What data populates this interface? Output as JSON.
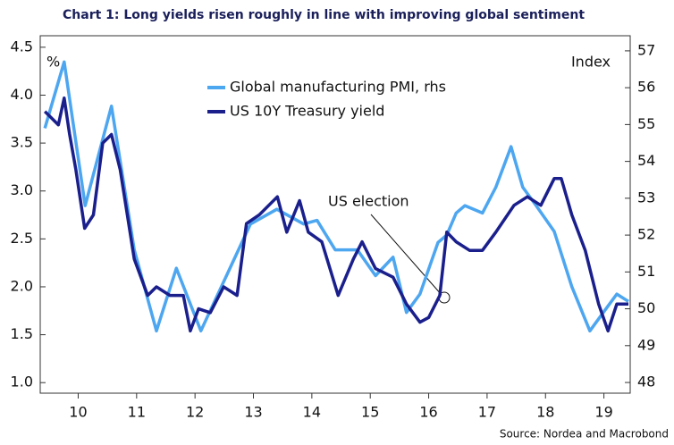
{
  "chart_data": {
    "type": "line",
    "title": "Chart 1: Long yields risen roughly in line with improving global sentiment",
    "y_label": "%",
    "y2_label": "Index",
    "source": "Source: Nordea and Macrobond",
    "annotation": "US election",
    "xlim": [
      9.85,
      19.95
    ],
    "xticks": [
      {
        "value": 10.5,
        "label": "10"
      },
      {
        "value": 11.5,
        "label": "11"
      },
      {
        "value": 12.5,
        "label": "12"
      },
      {
        "value": 13.5,
        "label": "13"
      },
      {
        "value": 14.5,
        "label": "14"
      },
      {
        "value": 15.5,
        "label": "15"
      },
      {
        "value": 16.5,
        "label": "16"
      },
      {
        "value": 17.5,
        "label": "17"
      },
      {
        "value": 18.5,
        "label": "18"
      },
      {
        "value": 19.5,
        "label": "19"
      }
    ],
    "ylim": [
      0.89,
      4.62
    ],
    "yticks": [
      {
        "value": 1,
        "label": "1.0"
      },
      1.5,
      {
        "value": 2,
        "label": "2.0"
      },
      2.5,
      {
        "value": 3,
        "label": "3.0"
      },
      3.5,
      {
        "value": 4,
        "label": "4.0"
      },
      4.5
    ],
    "y2lim": [
      47.71,
      57.41
    ],
    "y2ticks": [
      48,
      49,
      50,
      51,
      52,
      53,
      54,
      55,
      56,
      57
    ],
    "series": [
      {
        "name": "Global manufacturing PMI, rhs",
        "color": "#4da6f0",
        "axis": "y2",
        "x": [
          9.93,
          10.26,
          10.62,
          11.07,
          11.46,
          11.84,
          12.18,
          12.6,
          13.45,
          13.9,
          14.36,
          14.59,
          14.9,
          15.28,
          15.59,
          15.89,
          16.12,
          16.35,
          16.66,
          16.81,
          16.97,
          17.12,
          17.42,
          17.65,
          17.91,
          18.11,
          18.34,
          18.65,
          18.95,
          19.26,
          19.49,
          19.72,
          19.92
        ],
        "values": [
          54.9,
          56.7,
          52.8,
          55.5,
          51.6,
          49.4,
          51.1,
          49.4,
          52.3,
          52.7,
          52.3,
          52.4,
          51.6,
          51.6,
          50.9,
          51.4,
          49.9,
          50.4,
          51.8,
          52.0,
          52.6,
          52.8,
          52.6,
          53.3,
          54.4,
          53.3,
          52.8,
          52.1,
          50.6,
          49.4,
          49.9,
          50.4,
          50.2
        ]
      },
      {
        "name": "US 10Y Treasury yield",
        "color": "#1a1f8c",
        "x": [
          9.93,
          10.16,
          10.26,
          10.35,
          10.46,
          10.61,
          10.76,
          10.92,
          11.07,
          11.22,
          11.46,
          11.69,
          11.84,
          12.07,
          12.3,
          12.42,
          12.56,
          12.76,
          12.99,
          13.22,
          13.38,
          13.6,
          13.91,
          14.07,
          14.29,
          14.44,
          14.67,
          14.95,
          15.21,
          15.36,
          15.59,
          15.89,
          16.12,
          16.35,
          16.5,
          16.69,
          16.81,
          16.97,
          17.2,
          17.42,
          17.65,
          17.96,
          18.19,
          18.42,
          18.65,
          18.77,
          18.95,
          19.18,
          19.41,
          19.57,
          19.72,
          19.92
        ],
        "values": [
          3.83,
          3.69,
          3.97,
          3.6,
          3.22,
          2.61,
          2.75,
          3.5,
          3.59,
          3.22,
          2.29,
          1.91,
          2.0,
          1.91,
          1.91,
          1.54,
          1.77,
          1.73,
          2.0,
          1.91,
          2.66,
          2.75,
          2.94,
          2.57,
          2.9,
          2.57,
          2.47,
          1.91,
          2.29,
          2.47,
          2.19,
          2.1,
          1.82,
          1.63,
          1.68,
          1.91,
          2.57,
          2.47,
          2.38,
          2.38,
          2.57,
          2.85,
          2.94,
          2.85,
          3.13,
          3.13,
          2.75,
          2.38,
          1.82,
          1.54,
          1.82,
          1.82
        ]
      }
    ]
  }
}
